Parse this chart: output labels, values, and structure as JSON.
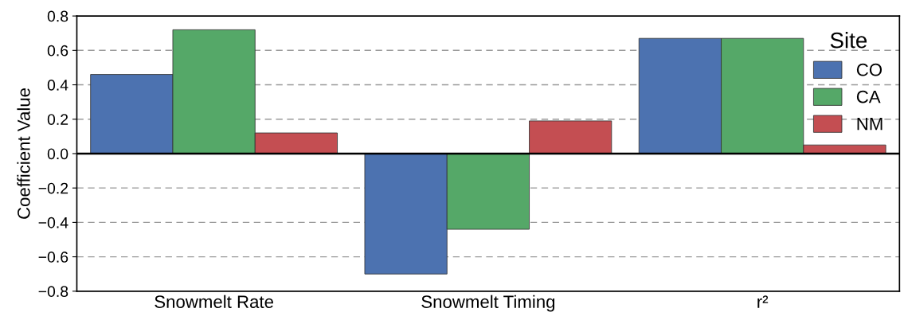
{
  "chart_data": {
    "type": "bar",
    "ylabel": "Coefficient Value",
    "legend_title": "Site",
    "legend": "top right",
    "grid": "y",
    "categories": [
      "Snowmelt Rate",
      "Snowmelt Timing",
      "r²"
    ],
    "series": [
      {
        "name": "CO",
        "color": "#4c72b0",
        "values": [
          0.46,
          -0.7,
          0.67
        ]
      },
      {
        "name": "CA",
        "color": "#55a868",
        "values": [
          0.72,
          -0.44,
          0.67
        ]
      },
      {
        "name": "NM",
        "color": "#c44e52",
        "values": [
          0.12,
          0.19,
          0.05
        ]
      }
    ],
    "ylim": [
      -0.8,
      0.8
    ],
    "yticks": [
      {
        "value": -0.8,
        "label": "−0.8"
      },
      {
        "value": -0.6,
        "label": "−0.6"
      },
      {
        "value": -0.4,
        "label": "−0.4"
      },
      {
        "value": -0.2,
        "label": "−0.2"
      },
      {
        "value": 0,
        "label": "0.0"
      },
      {
        "value": 0.2,
        "label": "0.2"
      },
      {
        "value": 0.4,
        "label": "0.4"
      },
      {
        "value": 0.6,
        "label": "0.6"
      },
      {
        "value": 0.8,
        "label": "0.8"
      }
    ],
    "ref_lines": [
      {
        "axis": "y",
        "value": 0,
        "color": "#000000",
        "line_style": "solid"
      }
    ]
  }
}
